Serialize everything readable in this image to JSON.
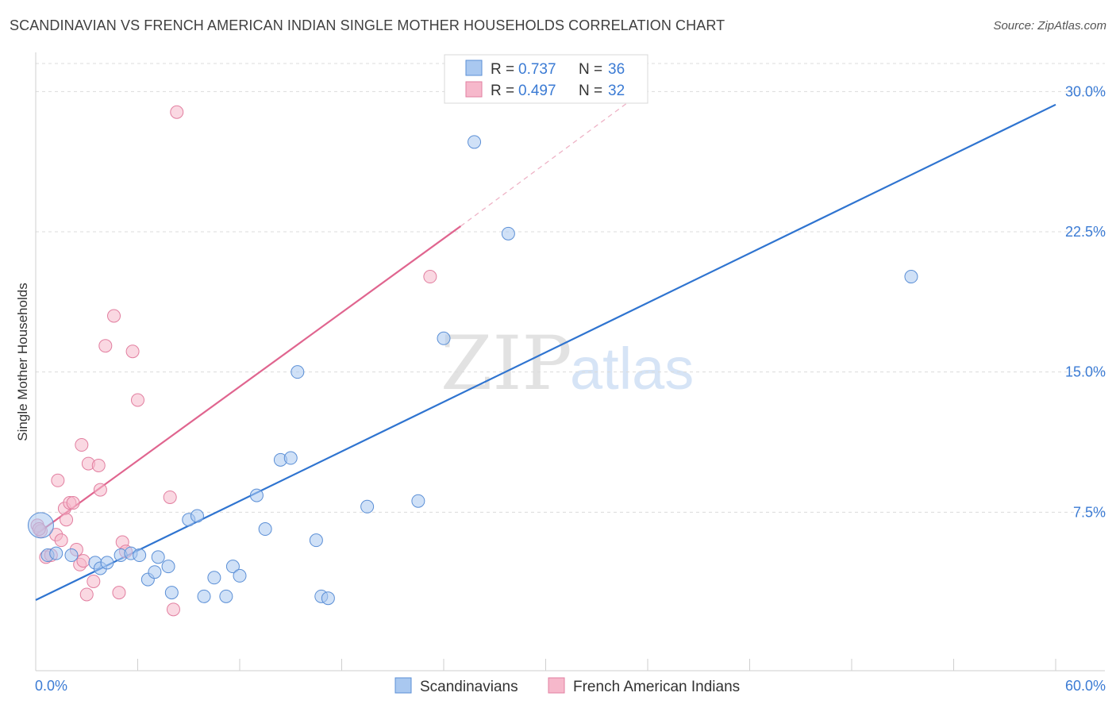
{
  "header": {
    "title": "SCANDINAVIAN VS FRENCH AMERICAN INDIAN SINGLE MOTHER HOUSEHOLDS CORRELATION CHART",
    "source": "Source: ZipAtlas.com"
  },
  "watermark": {
    "zip": "ZIP",
    "atlas": "atlas"
  },
  "legend": {
    "r_label": "R =",
    "n_label": "N =",
    "rows": [
      {
        "r": "0.737",
        "n": "36"
      },
      {
        "r": "0.497",
        "n": "32"
      }
    ]
  },
  "colors": {
    "blue_fill": "#a9c8f0",
    "blue_stroke": "#5b8fd6",
    "blue_line": "#2f74d0",
    "pink_fill": "#f6b8cb",
    "pink_stroke": "#e27fa0",
    "pink_line": "#e0658f",
    "tick_text": "#3b7bd4"
  },
  "chart_data": {
    "type": "scatter",
    "title": "SCANDINAVIAN VS FRENCH AMERICAN INDIAN SINGLE MOTHER HOUSEHOLDS CORRELATION CHART",
    "ylabel": "Single Mother Households",
    "xlabel": "",
    "xlim": [
      0,
      60
    ],
    "ylim": [
      0,
      31.5
    ],
    "x_tick_labels": [
      "0.0%",
      "60.0%"
    ],
    "y_ticks": [
      7.5,
      15.0,
      22.5,
      30.0
    ],
    "y_tick_labels": [
      "7.5%",
      "15.0%",
      "22.5%",
      "30.0%"
    ],
    "grid": true,
    "legend_position": "top-center",
    "series": [
      {
        "name": "Scandinavians",
        "color": "#a9c8f0",
        "points": [
          [
            0.3,
            6.8
          ],
          [
            0.7,
            5.2
          ],
          [
            1.2,
            5.3
          ],
          [
            2.1,
            5.2
          ],
          [
            3.5,
            4.8
          ],
          [
            3.8,
            4.5
          ],
          [
            4.2,
            4.8
          ],
          [
            5.0,
            5.2
          ],
          [
            5.6,
            5.3
          ],
          [
            6.1,
            5.2
          ],
          [
            6.6,
            3.9
          ],
          [
            7.0,
            4.3
          ],
          [
            7.2,
            5.1
          ],
          [
            7.8,
            4.6
          ],
          [
            8.0,
            3.2
          ],
          [
            9.0,
            7.1
          ],
          [
            9.5,
            7.3
          ],
          [
            9.9,
            3.0
          ],
          [
            10.5,
            4.0
          ],
          [
            11.2,
            3.0
          ],
          [
            11.6,
            4.6
          ],
          [
            12.0,
            4.1
          ],
          [
            13.0,
            8.4
          ],
          [
            13.5,
            6.6
          ],
          [
            14.4,
            10.3
          ],
          [
            15.0,
            10.4
          ],
          [
            15.4,
            15.0
          ],
          [
            16.5,
            6.0
          ],
          [
            16.8,
            3.0
          ],
          [
            17.2,
            2.9
          ],
          [
            19.5,
            7.8
          ],
          [
            22.5,
            8.1
          ],
          [
            24.0,
            16.8
          ],
          [
            25.8,
            27.3
          ],
          [
            27.8,
            22.4
          ],
          [
            51.5,
            20.1
          ]
        ]
      },
      {
        "name": "French American Indians",
        "color": "#f6b8cb",
        "points": [
          [
            0.1,
            6.8
          ],
          [
            0.3,
            6.5
          ],
          [
            0.6,
            5.1
          ],
          [
            0.9,
            5.2
          ],
          [
            1.2,
            6.3
          ],
          [
            1.3,
            9.2
          ],
          [
            1.5,
            6.0
          ],
          [
            1.7,
            7.7
          ],
          [
            1.8,
            7.1
          ],
          [
            2.0,
            8.0
          ],
          [
            2.2,
            8.0
          ],
          [
            2.4,
            5.5
          ],
          [
            2.6,
            4.7
          ],
          [
            2.8,
            4.9
          ],
          [
            3.0,
            3.1
          ],
          [
            2.7,
            11.1
          ],
          [
            3.1,
            10.1
          ],
          [
            3.4,
            3.8
          ],
          [
            3.7,
            10.0
          ],
          [
            3.8,
            8.7
          ],
          [
            4.1,
            16.4
          ],
          [
            4.6,
            18.0
          ],
          [
            4.9,
            3.2
          ],
          [
            5.1,
            5.9
          ],
          [
            5.3,
            5.4
          ],
          [
            5.7,
            16.1
          ],
          [
            6.0,
            13.5
          ],
          [
            7.9,
            8.3
          ],
          [
            8.1,
            2.3
          ],
          [
            8.3,
            28.9
          ],
          [
            23.2,
            20.1
          ],
          [
            0.2,
            6.6
          ]
        ]
      }
    ],
    "trendlines": [
      {
        "series": "Scandinavians",
        "x": [
          0,
          60
        ],
        "y": [
          2.8,
          29.3
        ]
      },
      {
        "series": "French American Indians",
        "x": [
          0,
          25
        ],
        "y": [
          6.3,
          22.8
        ],
        "dashed_extension_to": [
          36,
          30.2
        ]
      }
    ]
  }
}
